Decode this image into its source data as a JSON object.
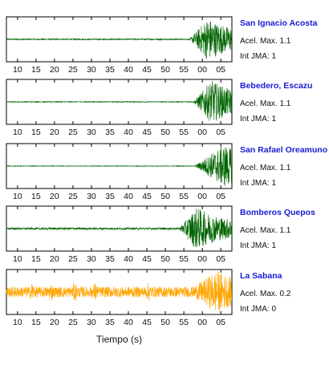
{
  "chart_data": {
    "type": "line",
    "xlabel": "Tiempo (s)",
    "x_tick_labels": [
      "10",
      "15",
      "20",
      "25",
      "30",
      "35",
      "40",
      "45",
      "50",
      "55",
      "00",
      "05"
    ],
    "panels": [
      {
        "station": "San Ignacio Acosta",
        "acel_label": "Acel. Max. 1.1",
        "jma_label": "Int JMA: 1",
        "color": "#006400",
        "onset_s": 56.5,
        "peak_s": 61.5,
        "pre_noise": 0.03,
        "post_amp": 1.0
      },
      {
        "station": "Bebedero, Escazu",
        "acel_label": "Acel. Max. 1.1",
        "jma_label": "Int JMA: 1",
        "color": "#006400",
        "onset_s": 57.5,
        "peak_s": 62.5,
        "pre_noise": 0.02,
        "post_amp": 1.0
      },
      {
        "station": "San Rafael Oreamuno",
        "acel_label": "Acel. Max. 1.1",
        "jma_label": "Int JMA: 1",
        "color": "#006400",
        "onset_s": 57.8,
        "peak_s": 66.0,
        "pre_noise": 0.015,
        "post_amp": 1.0
      },
      {
        "station": "Bomberos Quepos",
        "acel_label": "Acel. Max. 1.1",
        "jma_label": "Int JMA: 1",
        "color": "#006400",
        "onset_s": 53.6,
        "peak_s": 58.5,
        "pre_noise": 0.05,
        "post_amp": 1.0
      },
      {
        "station": "La Sabana",
        "acel_label": "Acel. Max. 0.2",
        "jma_label": "Int JMA: 0",
        "color": "#ffa500",
        "onset_s": 55.5,
        "peak_s": 64.0,
        "pre_noise": 0.25,
        "post_amp": 1.0
      }
    ],
    "x_range_s": [
      7,
      68
    ],
    "x_ticks_s": [
      10,
      15,
      20,
      25,
      30,
      35,
      40,
      45,
      50,
      55,
      60,
      65
    ],
    "grid": false
  }
}
